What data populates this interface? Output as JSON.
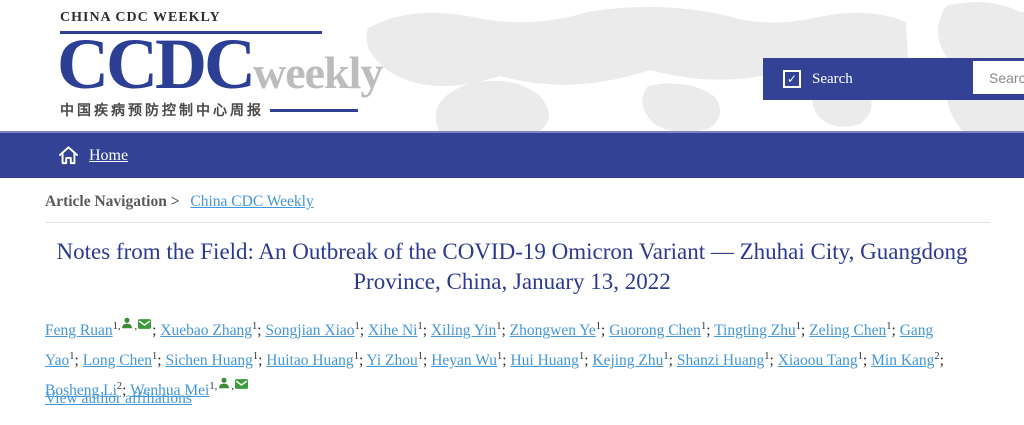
{
  "header": {
    "site_label": "CHINA CDC WEEKLY",
    "logo": {
      "main": "CCDC",
      "suffix": "weekly",
      "chinese": "中国疾病预防控制中心周报"
    },
    "search": {
      "checkbox_label": "Search",
      "checkbox_checked": true,
      "checkbox_glyph": "✓",
      "input_value": "",
      "input_placeholder": "Search"
    }
  },
  "nav": {
    "home_label": "Home"
  },
  "breadcrumb": {
    "label": "Article Navigation >",
    "link_label": "China CDC Weekly"
  },
  "article": {
    "title": "Notes from the Field: An Outbreak of the COVID-19 Omicron Variant — Zhuhai City, Guangdong Province, China, January 13, 2022",
    "authors": [
      {
        "name": "Feng Ruan",
        "sup": "1,",
        "icons": [
          "person-icon",
          "envelope-icon"
        ]
      },
      {
        "name": "Xuebao Zhang",
        "sup": "1"
      },
      {
        "name": "Songjian Xiao",
        "sup": "1"
      },
      {
        "name": "Xihe Ni",
        "sup": "1"
      },
      {
        "name": "Xiling Yin",
        "sup": "1"
      },
      {
        "name": "Zhongwen Ye",
        "sup": "1"
      },
      {
        "name": "Guorong Chen",
        "sup": "1"
      },
      {
        "name": "Tingting Zhu",
        "sup": "1"
      },
      {
        "name": "Zeling Chen",
        "sup": "1"
      },
      {
        "name": "Gang Yao",
        "sup": "1"
      },
      {
        "name": "Long Chen",
        "sup": "1"
      },
      {
        "name": "Sichen Huang",
        "sup": "1"
      },
      {
        "name": "Huitao Huang",
        "sup": "1"
      },
      {
        "name": "Yi Zhou",
        "sup": "1"
      },
      {
        "name": "Heyan Wu",
        "sup": "1"
      },
      {
        "name": "Hui Huang",
        "sup": "1"
      },
      {
        "name": "Kejing Zhu",
        "sup": "1"
      },
      {
        "name": "Shanzi Huang",
        "sup": "1"
      },
      {
        "name": "Xiaoou Tang",
        "sup": "1"
      },
      {
        "name": "Min Kang",
        "sup": "2"
      },
      {
        "name": "Bosheng Li",
        "sup": "2"
      },
      {
        "name": "Wenhua Mei",
        "sup": "1,",
        "icons": [
          "person-icon",
          "envelope-icon"
        ]
      }
    ],
    "author_separator": "; ",
    "affiliations_link_label": "View author affiliations"
  },
  "colors": {
    "primary_blue": "#334294",
    "logo_blue": "#2d3f94",
    "title_blue": "#2b3a90",
    "link_blue": "#4496db",
    "icon_green": "#3e8a3a",
    "envelope_green": "#3e9a3e",
    "logo_gray": "#bcbcbc"
  }
}
